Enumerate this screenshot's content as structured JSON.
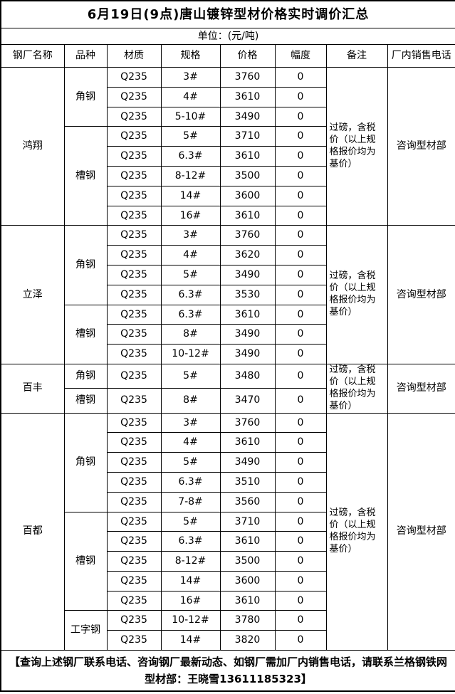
{
  "title": "6月19日(9点)唐山镀锌型材价格实时调价汇总",
  "unit_label": "单位：(元/吨)",
  "columns": [
    "钢厂名称",
    "品种",
    "材质",
    "规格",
    "价格",
    "幅度",
    "备注",
    "厂内销售电话"
  ],
  "factories": [
    {
      "name": "鸿翔",
      "remark": "过磅，含税价（以上规格报价均为基价）",
      "phone": "咨询型材部",
      "varieties": [
        {
          "name": "角钢",
          "rows": [
            [
              "Q235",
              "3#",
              "3760",
              "0"
            ],
            [
              "Q235",
              "4#",
              "3610",
              "0"
            ],
            [
              "Q235",
              "5-10#",
              "3490",
              "0"
            ]
          ]
        },
        {
          "name": "槽钢",
          "rows": [
            [
              "Q235",
              "5#",
              "3710",
              "0"
            ],
            [
              "Q235",
              "6.3#",
              "3610",
              "0"
            ],
            [
              "Q235",
              "8-12#",
              "3500",
              "0"
            ],
            [
              "Q235",
              "14#",
              "3600",
              "0"
            ],
            [
              "Q235",
              "16#",
              "3610",
              "0"
            ]
          ]
        }
      ]
    },
    {
      "name": "立泽",
      "remark": "过磅，含税价（以上规格报价均为基价）",
      "phone": "咨询型材部",
      "varieties": [
        {
          "name": "角钢",
          "rows": [
            [
              "Q235",
              "3#",
              "3760",
              "0"
            ],
            [
              "Q235",
              "4#",
              "3620",
              "0"
            ],
            [
              "Q235",
              "5#",
              "3490",
              "0"
            ],
            [
              "Q235",
              "6.3#",
              "3530",
              "0"
            ]
          ]
        },
        {
          "name": "槽钢",
          "rows": [
            [
              "Q235",
              "6.3#",
              "3610",
              "0"
            ],
            [
              "Q235",
              "8#",
              "3490",
              "0"
            ],
            [
              "Q235",
              "10-12#",
              "3490",
              "0"
            ]
          ]
        }
      ]
    },
    {
      "name": "百丰",
      "remark": "过磅，含税价（以上规格报价均为基价）",
      "phone": "咨询型材部",
      "varieties": [
        {
          "name": "角钢",
          "rows": [
            [
              "Q235",
              "5#",
              "3480",
              "0"
            ]
          ]
        },
        {
          "name": "槽钢",
          "rows": [
            [
              "Q235",
              "8#",
              "3470",
              "0"
            ]
          ]
        }
      ]
    },
    {
      "name": "百都",
      "remark": "过磅，含税价（以上规格报价均为基价）",
      "phone": "咨询型材部",
      "varieties": [
        {
          "name": "角钢",
          "rows": [
            [
              "Q235",
              "3#",
              "3760",
              "0"
            ],
            [
              "Q235",
              "4#",
              "3610",
              "0"
            ],
            [
              "Q235",
              "5#",
              "3490",
              "0"
            ],
            [
              "Q235",
              "6.3#",
              "3510",
              "0"
            ],
            [
              "Q235",
              "7-8#",
              "3560",
              "0"
            ]
          ]
        },
        {
          "name": "槽钢",
          "rows": [
            [
              "Q235",
              "5#",
              "3710",
              "0"
            ],
            [
              "Q235",
              "6.3#",
              "3610",
              "0"
            ],
            [
              "Q235",
              "8-12#",
              "3500",
              "0"
            ],
            [
              "Q235",
              "14#",
              "3600",
              "0"
            ],
            [
              "Q235",
              "16#",
              "3610",
              "0"
            ]
          ]
        },
        {
          "name": "工字钢",
          "rows": [
            [
              "Q235",
              "10-12#",
              "3780",
              "0"
            ],
            [
              "Q235",
              "14#",
              "3820",
              "0"
            ]
          ]
        }
      ]
    }
  ],
  "footer": "【查询上述钢厂联系电话、咨询钢厂最新动态、如钢厂需加厂内销售电话，请联系兰格钢铁网型材部：王晓雪13611185323】"
}
